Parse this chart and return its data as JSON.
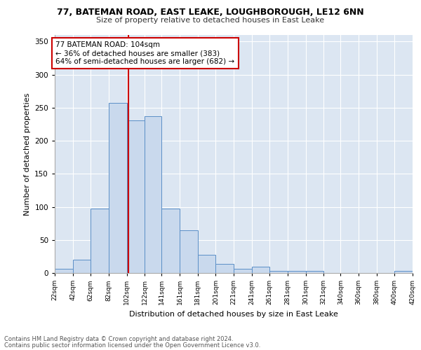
{
  "title1": "77, BATEMAN ROAD, EAST LEAKE, LOUGHBOROUGH, LE12 6NN",
  "title2": "Size of property relative to detached houses in East Leake",
  "xlabel": "Distribution of detached houses by size in East Leake",
  "ylabel": "Number of detached properties",
  "bar_color": "#c9d9ed",
  "bar_edge_color": "#5b8fc7",
  "bin_edges": [
    22,
    42,
    62,
    82,
    102,
    122,
    141,
    161,
    181,
    201,
    221,
    241,
    261,
    281,
    301,
    321,
    340,
    360,
    380,
    400,
    420
  ],
  "counts": [
    6,
    20,
    97,
    257,
    231,
    237,
    97,
    65,
    28,
    14,
    6,
    10,
    3,
    3,
    3,
    0,
    0,
    0,
    0,
    3
  ],
  "tick_labels": [
    "22sqm",
    "42sqm",
    "62sqm",
    "82sqm",
    "102sqm",
    "122sqm",
    "141sqm",
    "161sqm",
    "181sqm",
    "201sqm",
    "221sqm",
    "241sqm",
    "261sqm",
    "281sqm",
    "301sqm",
    "321sqm",
    "340sqm",
    "360sqm",
    "380sqm",
    "400sqm",
    "420sqm"
  ],
  "property_value": 104,
  "property_label": "77 BATEMAN ROAD: 104sqm",
  "annotation_line1": "← 36% of detached houses are smaller (383)",
  "annotation_line2": "64% of semi-detached houses are larger (682) →",
  "vline_color": "#cc0000",
  "annotation_box_color": "#ffffff",
  "annotation_box_edge": "#cc0000",
  "footnote1": "Contains HM Land Registry data © Crown copyright and database right 2024.",
  "footnote2": "Contains public sector information licensed under the Open Government Licence v3.0.",
  "ylim": [
    0,
    360
  ],
  "background_color": "#dce6f2"
}
